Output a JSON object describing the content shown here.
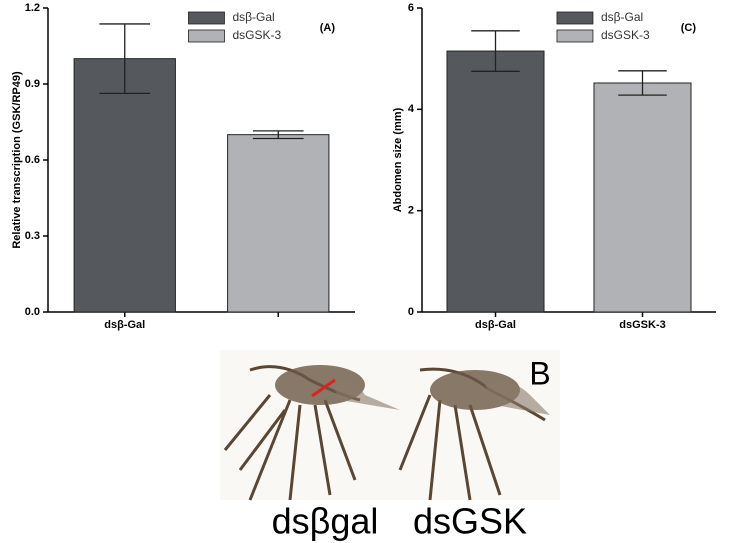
{
  "chart_data": [
    {
      "type": "bar",
      "title": "(A)",
      "ylabel": "Relative transcription (GSK/RP49)",
      "categories": [
        "dsβ-Gal",
        null
      ],
      "series": [
        {
          "name": "dsβ-Gal",
          "color": "#55595e",
          "values": [
            1.0,
            null
          ],
          "errors": [
            0.137,
            null
          ]
        },
        {
          "name": "dsGSK-3",
          "color": "#b1b2b6",
          "values": [
            null,
            0.7
          ],
          "errors": [
            null,
            0.015
          ]
        }
      ],
      "ylim": [
        0,
        1.2
      ],
      "yticks": [
        {
          "value": 0,
          "label": "0.0"
        },
        0.3,
        0.6,
        0.9,
        1.2
      ]
    },
    {
      "type": "bar",
      "title": "(C)",
      "ylabel": "Abdomen size (mm)",
      "categories": [
        "dsβ-Gal",
        "dsGSK-3"
      ],
      "series": [
        {
          "name": "dsβ-Gal",
          "color": "#55595e",
          "values": [
            5.15,
            null
          ],
          "errors": [
            0.4,
            null
          ]
        },
        {
          "name": "dsGSK-3",
          "color": "#b1b2b6",
          "values": [
            null,
            4.52
          ],
          "errors": [
            null,
            0.24
          ]
        }
      ],
      "ylim": [
        0,
        6
      ],
      "yticks": [
        0,
        2,
        4,
        6
      ]
    }
  ],
  "panel_b": {
    "label": "B",
    "captions": [
      "dsβgal",
      "dsGSK"
    ]
  }
}
